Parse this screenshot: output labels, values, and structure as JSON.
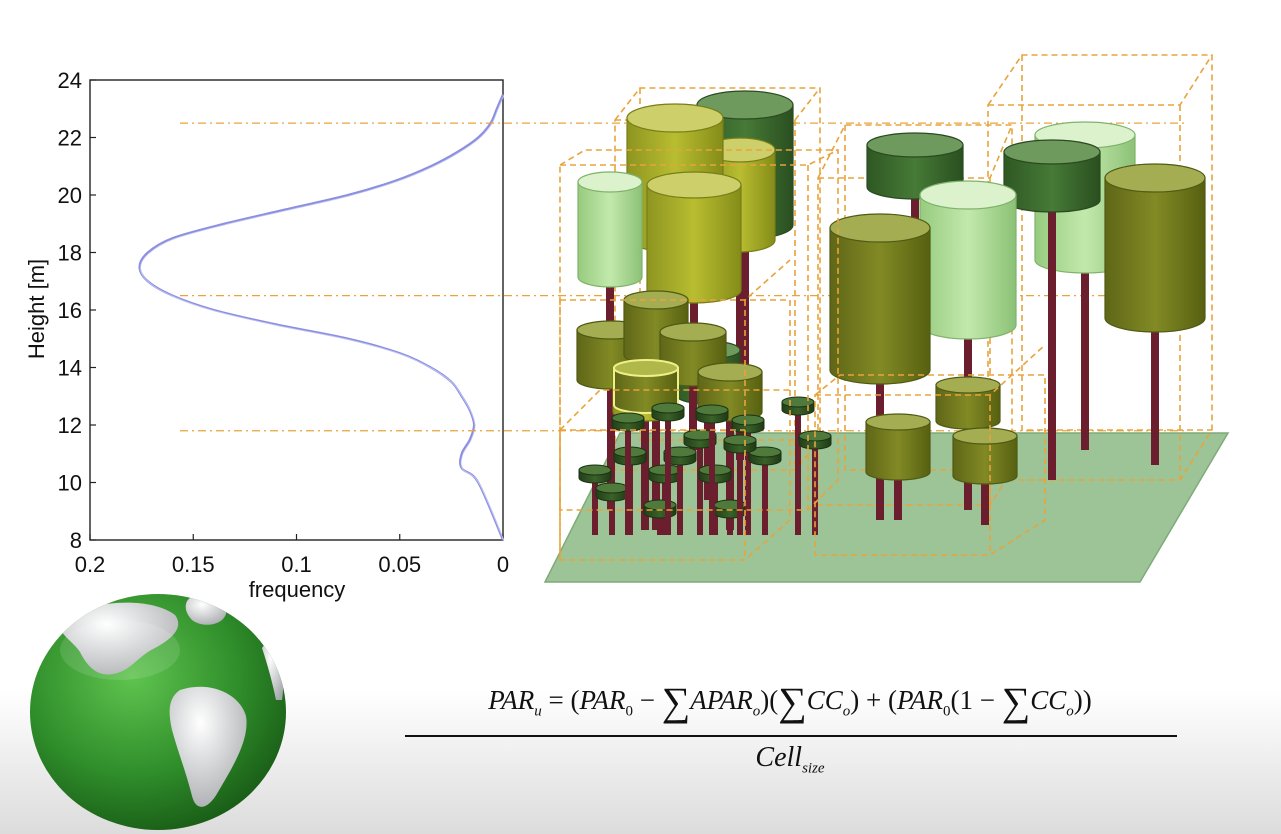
{
  "chart_data": {
    "type": "line",
    "xlabel": "frequency",
    "ylabel": "Height [m]",
    "xlim": [
      0.2,
      0
    ],
    "ylim": [
      8,
      24
    ],
    "x_ticks": [
      "0.2",
      "0.15",
      "0.1",
      "0.05",
      "0"
    ],
    "y_ticks": [
      "8",
      "10",
      "12",
      "14",
      "16",
      "18",
      "20",
      "22",
      "24"
    ],
    "grid": false,
    "line_color": "#8c8fe0",
    "reference_heights": [
      22.5,
      16.5,
      11.8
    ],
    "series": [
      {
        "x": [
          0.0,
          0.003,
          0.006,
          0.012,
          0.022,
          0.035,
          0.052,
          0.075,
          0.105,
          0.135,
          0.16,
          0.172,
          0.176,
          0.172,
          0.16,
          0.14,
          0.11,
          0.075,
          0.05,
          0.035,
          0.025,
          0.02,
          0.016,
          0.014,
          0.016,
          0.02,
          0.02,
          0.012,
          0.0
        ],
        "y": [
          23.5,
          23.0,
          22.5,
          22.0,
          21.5,
          21.0,
          20.5,
          20.0,
          19.5,
          19.0,
          18.5,
          18.0,
          17.5,
          17.0,
          16.5,
          16.0,
          15.5,
          15.0,
          14.5,
          14.0,
          13.5,
          13.0,
          12.5,
          12.0,
          11.5,
          11.0,
          10.5,
          10.0,
          8.0
        ]
      }
    ]
  },
  "formula": {
    "lhs_base": "PAR",
    "lhs_sub": "u",
    "eq": " = (",
    "par0_base": "PAR",
    "par0_sub": "0",
    "minus": " − ",
    "sigma": "∑",
    "apar_base": "APAR",
    "apar_sub": "o",
    "close_open": ")(",
    "cc_base": "CC",
    "cc_sub": "o",
    "close_plus": ") + (",
    "par0b_base": "PAR",
    "par0b_sub": "0",
    "one_minus": "(1 − ",
    "cc2_base": "CC",
    "cc2_sub": "o",
    "end": "))",
    "den_base": "Cell",
    "den_sub": "size"
  },
  "colors": {
    "frame": "#e8a33c",
    "ground": "#9cc497",
    "trunk": "#6b1f2e",
    "crown_dark": "#3d6a2e",
    "crown_olive": "#78801d",
    "crown_yellow": "#a9ad26",
    "crown_light": "#aedb94",
    "globe": "#3ea13a"
  }
}
